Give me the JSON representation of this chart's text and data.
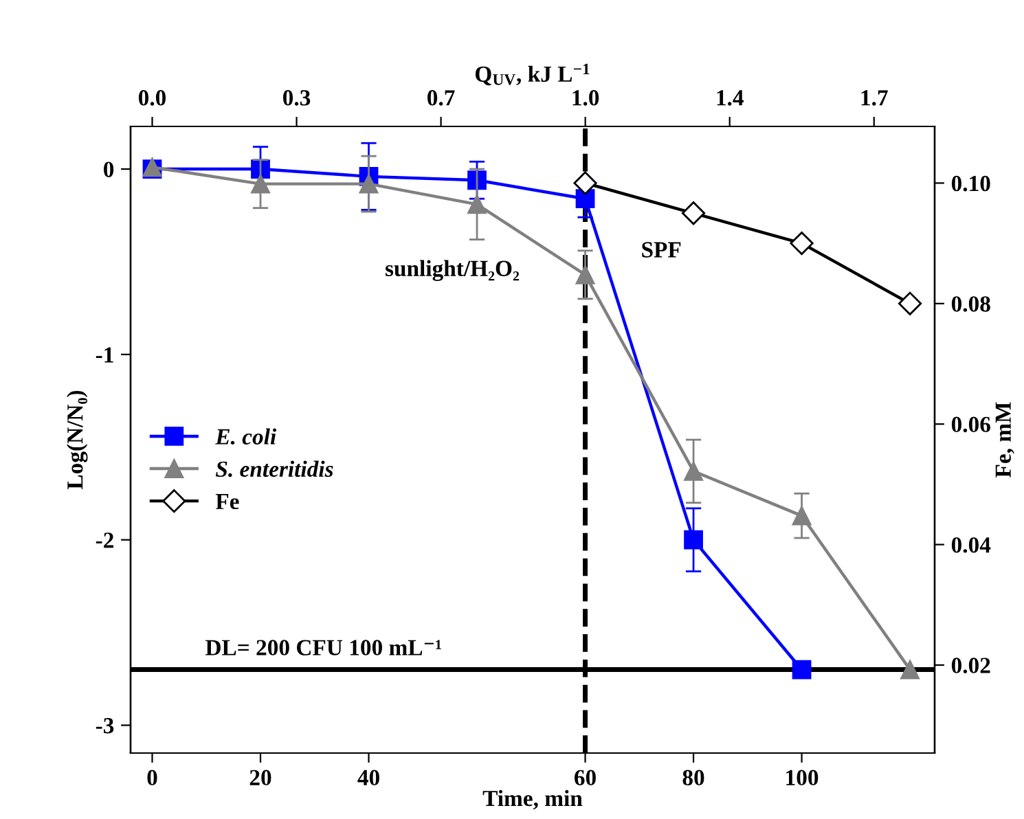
{
  "chart_data": {
    "type": "line",
    "xlabel": "Time, min",
    "ylabel": "Log(N/N₀)",
    "y2label": "Fe, mM",
    "x2label": "Q$_{UV}$, kJ L$^{−1}$",
    "categories": [
      "0",
      "20",
      "40",
      null,
      "60",
      "80",
      "100",
      null
    ],
    "x2lim": [
      -0.0525,
      1.897
    ],
    "x2ticks": [
      {
        "value": 0,
        "label": "0.0"
      },
      {
        "value": 0.35,
        "label": "0.3"
      },
      {
        "value": 0.7,
        "label": "0.7"
      },
      {
        "value": 1.05,
        "label": "1.0"
      },
      {
        "value": 1.4,
        "label": "1.4"
      },
      {
        "value": 1.75,
        "label": "1.7"
      }
    ],
    "ylim": [
      -3.15,
      0.23
    ],
    "yticks": [
      -3,
      -2,
      -1,
      0
    ],
    "y2lim": [
      0.0054,
      0.1094
    ],
    "y2ticks": [
      {
        "value": 0.02,
        "label": "0.02"
      },
      {
        "value": 0.04,
        "label": "0.04"
      },
      {
        "value": 0.06,
        "label": "0.06"
      },
      {
        "value": 0.08,
        "label": "0.08"
      },
      {
        "value": 0.1,
        "label": "0.10"
      }
    ],
    "series": [
      {
        "name": "E. coli",
        "color": "#0000ff",
        "marker": "square",
        "values": [
          0,
          0,
          -0.04,
          -0.06,
          -0.16,
          -2.0,
          -2.7,
          null
        ],
        "errors": [
          null,
          0.12,
          0.18,
          0.1,
          0.1,
          0.17,
          null,
          null
        ]
      },
      {
        "name": "S. enteritidis",
        "color": "#808080",
        "marker": "triangle",
        "values": [
          0.01,
          -0.08,
          -0.08,
          -0.19,
          -0.57,
          -1.63,
          -1.87,
          -2.7
        ],
        "errors": [
          null,
          0.13,
          0.15,
          0.19,
          0.13,
          0.17,
          0.12,
          null
        ]
      },
      {
        "name": "Fe",
        "color": "#000000",
        "marker": "diamond",
        "axis": "y2",
        "values": [
          null,
          null,
          null,
          null,
          0.1,
          0.095,
          0.09,
          0.08
        ]
      }
    ],
    "ref_lines": [
      {
        "axis": "y",
        "value": -2.7,
        "color": "#000000",
        "line_style": "solid"
      },
      {
        "axis": "x",
        "value": "60",
        "color": "#000000",
        "line_style": "dashed"
      }
    ],
    "annotations": [
      "sunlight/H₂O₂",
      "SPF",
      "DL= 200 CFU 100 mL⁻¹"
    ],
    "legend": "center left",
    "grid": false
  }
}
